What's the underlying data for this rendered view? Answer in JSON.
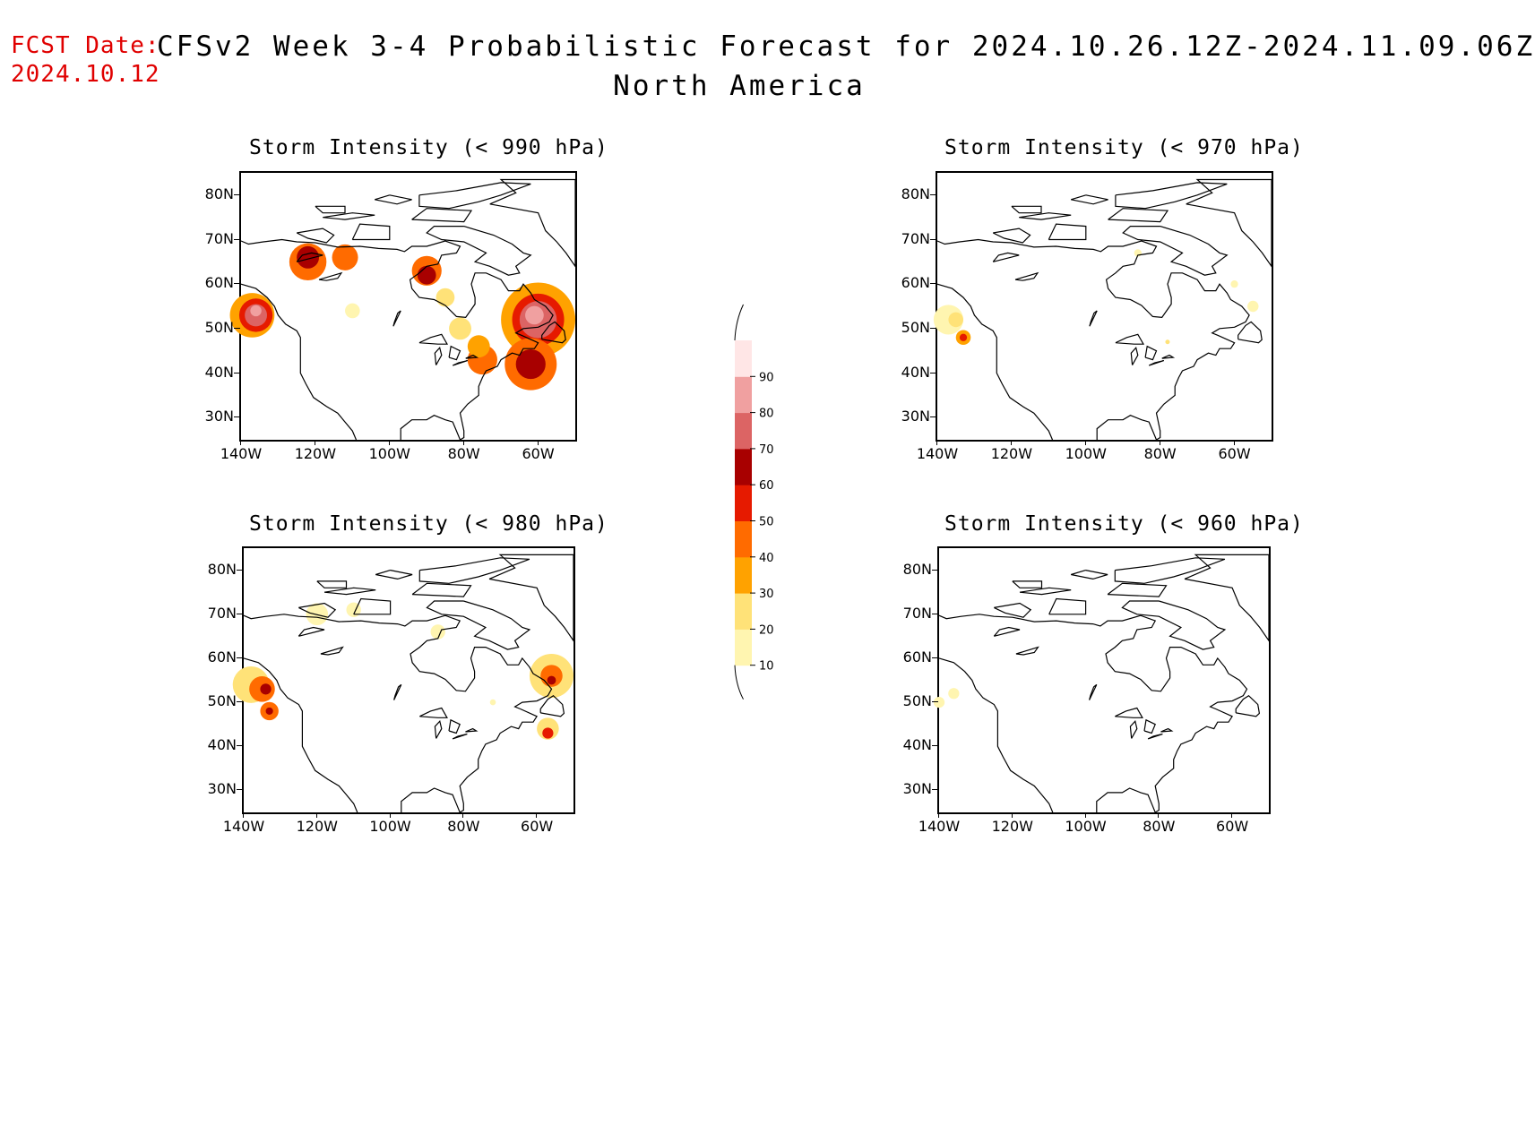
{
  "header": {
    "fcst_label": "FCST Date:",
    "fcst_date": "2024.10.12",
    "title": "CFSv2 Week 3-4 Probabilistic Forecast for 2024.10.26.12Z-2024.11.09.06Z",
    "subtitle": "North America"
  },
  "panels": [
    {
      "title": "Storm Intensity (< 990 hPa)"
    },
    {
      "title": "Storm Intensity (< 970 hPa)"
    },
    {
      "title": "Storm Intensity (< 980 hPa)"
    },
    {
      "title": "Storm Intensity (< 960 hPa)"
    }
  ],
  "axes": {
    "lat_ticks": [
      "80N",
      "70N",
      "60N",
      "50N",
      "40N",
      "30N"
    ],
    "lon_ticks": [
      "140W",
      "120W",
      "100W",
      "80W",
      "60W"
    ],
    "lat_range": [
      25,
      85
    ],
    "lon_range": [
      -140,
      -50
    ]
  },
  "colorbar": {
    "levels": [
      "10",
      "20",
      "30",
      "40",
      "50",
      "60",
      "70",
      "80",
      "90"
    ],
    "colors": [
      "#fff5b0",
      "#ffe278",
      "#ffa200",
      "#ff6b00",
      "#e61a00",
      "#a80000",
      "#dc6464",
      "#f0a0a0",
      "#ffe6e6"
    ]
  }
}
